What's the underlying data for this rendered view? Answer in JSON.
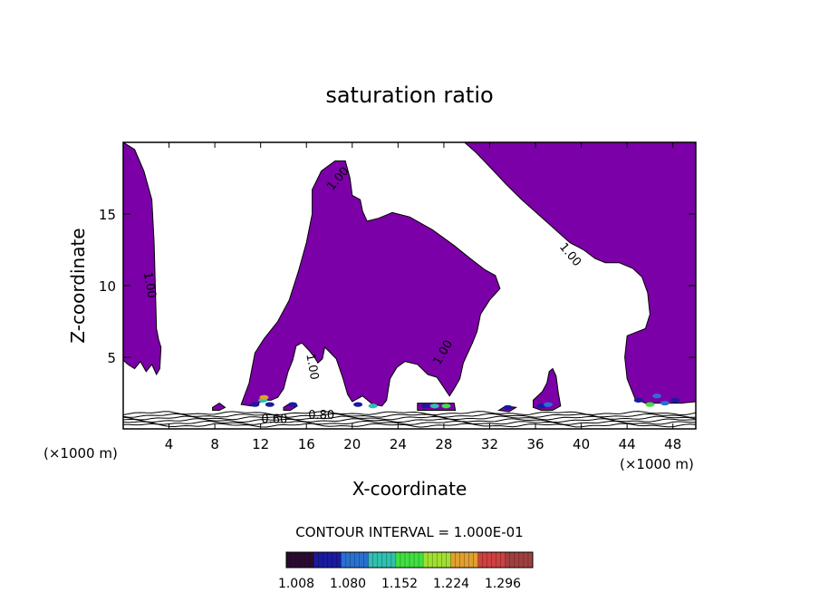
{
  "chart_data": {
    "type": "heatmap",
    "title": "saturation ratio",
    "xlabel": "X-coordinate",
    "ylabel": "Z-coordinate",
    "x_unit_left": "(×1000 m)",
    "x_unit_right": "(×1000 m)",
    "xlim": [
      0,
      50
    ],
    "ylim": [
      0,
      20
    ],
    "x_ticks": [
      4,
      8,
      12,
      16,
      20,
      24,
      28,
      32,
      36,
      40,
      44,
      48
    ],
    "y_ticks": [
      5,
      10,
      15
    ],
    "contour_interval_text": "CONTOUR INTERVAL = 1.000E-01",
    "contour_labels": [
      {
        "text": "1.00",
        "x": 19.0,
        "z": 17.3,
        "angle": -50
      },
      {
        "text": "1.00",
        "x": 2.0,
        "z": 10.0,
        "angle": 80
      },
      {
        "text": "1.00",
        "x": 16.2,
        "z": 4.3,
        "angle": 80
      },
      {
        "text": "1.00",
        "x": 28.2,
        "z": 5.2,
        "angle": -60
      },
      {
        "text": "1.00",
        "x": 38.8,
        "z": 12.0,
        "angle": 50
      },
      {
        "text": "0.60",
        "x": 13.2,
        "z": 0.4,
        "angle": 0
      },
      {
        "text": "0.80",
        "x": 17.3,
        "z": 0.7,
        "angle": 0
      }
    ],
    "colorbar": {
      "ticks": [
        "1.008",
        "1.080",
        "1.152",
        "1.224",
        "1.296"
      ],
      "range": [
        1.0,
        1.33
      ],
      "colors": [
        "#2a0a30",
        "#1a1aa0",
        "#2a70d0",
        "#30c0b0",
        "#40e040",
        "#a0e030",
        "#e0a030",
        "#d04040",
        "#a04040"
      ]
    },
    "supersaturated_fill_color": "#7b00a8",
    "regions": [
      {
        "name": "left-column",
        "points": [
          [
            0,
            20
          ],
          [
            1,
            19.5
          ],
          [
            1.8,
            18
          ],
          [
            2.5,
            16
          ],
          [
            2.7,
            13
          ],
          [
            2.8,
            10
          ],
          [
            2.9,
            7
          ],
          [
            3.1,
            6.2
          ],
          [
            3.3,
            5.7
          ],
          [
            3.2,
            4.2
          ],
          [
            2.9,
            3.8
          ],
          [
            2.5,
            4.5
          ],
          [
            2.0,
            4.0
          ],
          [
            1.5,
            4.7
          ],
          [
            1.0,
            4.2
          ],
          [
            0.4,
            4.5
          ],
          [
            0,
            4.8
          ]
        ]
      },
      {
        "name": "central-cloud",
        "points": [
          [
            10.3,
            1.7
          ],
          [
            11.0,
            3.2
          ],
          [
            11.5,
            5.3
          ],
          [
            12.3,
            6.3
          ],
          [
            13.5,
            7.5
          ],
          [
            14.5,
            9.0
          ],
          [
            15.3,
            11.0
          ],
          [
            16.0,
            13.0
          ],
          [
            16.5,
            15.0
          ],
          [
            16.5,
            16.7
          ],
          [
            17.3,
            18.0
          ],
          [
            18.5,
            18.7
          ],
          [
            19.4,
            18.7
          ],
          [
            19.8,
            17.5
          ],
          [
            20.0,
            16.3
          ],
          [
            20.7,
            16.0
          ],
          [
            20.9,
            15.2
          ],
          [
            21.3,
            14.5
          ],
          [
            22.3,
            14.7
          ],
          [
            23.5,
            15.1
          ],
          [
            25.0,
            14.8
          ],
          [
            27.0,
            13.9
          ],
          [
            28.9,
            12.8
          ],
          [
            30.3,
            11.9
          ],
          [
            31.6,
            11.1
          ],
          [
            32.5,
            10.7
          ],
          [
            32.9,
            9.8
          ],
          [
            32.0,
            9.0
          ],
          [
            31.2,
            8.0
          ],
          [
            30.9,
            6.8
          ],
          [
            30.5,
            6.0
          ],
          [
            29.7,
            4.6
          ],
          [
            29.4,
            3.5
          ],
          [
            28.9,
            2.8
          ],
          [
            28.5,
            2.3
          ],
          [
            27.4,
            3.6
          ],
          [
            26.6,
            3.8
          ],
          [
            25.7,
            4.5
          ],
          [
            24.6,
            4.7
          ],
          [
            23.9,
            4.3
          ],
          [
            23.3,
            3.5
          ],
          [
            23.0,
            2.0
          ],
          [
            22.6,
            1.6
          ],
          [
            21.8,
            1.7
          ],
          [
            20.9,
            2.3
          ],
          [
            20.0,
            1.9
          ],
          [
            19.6,
            2.4
          ],
          [
            19.2,
            3.5
          ],
          [
            18.6,
            4.9
          ],
          [
            17.6,
            5.7
          ],
          [
            17.4,
            4.9
          ],
          [
            17.0,
            4.6
          ],
          [
            16.7,
            5.0
          ],
          [
            16.2,
            5.5
          ],
          [
            15.6,
            6.0
          ],
          [
            15.1,
            5.8
          ],
          [
            14.8,
            4.8
          ],
          [
            14.4,
            4.0
          ],
          [
            14.0,
            2.8
          ],
          [
            13.5,
            2.2
          ],
          [
            12.9,
            2.0
          ],
          [
            12.3,
            2.0
          ],
          [
            11.8,
            1.8
          ],
          [
            11.2,
            1.6
          ]
        ]
      },
      {
        "name": "right-anvil",
        "points": [
          [
            29.8,
            20
          ],
          [
            50,
            20
          ],
          [
            50,
            1.9
          ],
          [
            48.7,
            1.8
          ],
          [
            47.2,
            1.8
          ],
          [
            45.6,
            1.8
          ],
          [
            44.7,
            2.1
          ],
          [
            44.0,
            3.5
          ],
          [
            43.8,
            5.0
          ],
          [
            44.0,
            6.5
          ],
          [
            45.6,
            7.0
          ],
          [
            46.0,
            8.0
          ],
          [
            45.8,
            9.5
          ],
          [
            45.3,
            10.6
          ],
          [
            44.5,
            11.2
          ],
          [
            43.3,
            11.6
          ],
          [
            42.1,
            11.6
          ],
          [
            41.2,
            11.9
          ],
          [
            40.2,
            12.5
          ],
          [
            39.0,
            13.0
          ],
          [
            37.6,
            14.0
          ],
          [
            36.2,
            15.0
          ],
          [
            34.8,
            16.0
          ],
          [
            33.4,
            17.1
          ],
          [
            32.0,
            18.3
          ],
          [
            30.8,
            19.3
          ]
        ]
      },
      {
        "name": "cell-36",
        "points": [
          [
            35.8,
            2.0
          ],
          [
            36.6,
            2.6
          ],
          [
            37.0,
            3.2
          ],
          [
            37.2,
            4.0
          ],
          [
            37.5,
            4.2
          ],
          [
            37.8,
            3.7
          ],
          [
            38.0,
            2.5
          ],
          [
            38.2,
            1.6
          ],
          [
            37.5,
            1.3
          ],
          [
            36.5,
            1.3
          ],
          [
            35.8,
            1.5
          ]
        ]
      },
      {
        "name": "base-blob-1",
        "points": [
          [
            7.8,
            1.5
          ],
          [
            8.4,
            1.8
          ],
          [
            8.9,
            1.5
          ],
          [
            8.4,
            1.3
          ],
          [
            7.8,
            1.3
          ]
        ]
      },
      {
        "name": "base-blob-2",
        "points": [
          [
            14.0,
            1.5
          ],
          [
            14.6,
            1.8
          ],
          [
            15.2,
            1.6
          ],
          [
            14.6,
            1.3
          ],
          [
            14.0,
            1.3
          ]
        ]
      },
      {
        "name": "base-blob-3",
        "points": [
          [
            25.7,
            1.3
          ],
          [
            25.7,
            1.8
          ],
          [
            28.9,
            1.8
          ],
          [
            29.0,
            1.3
          ]
        ]
      },
      {
        "name": "base-blob-4",
        "points": [
          [
            32.8,
            1.3
          ],
          [
            33.4,
            1.6
          ],
          [
            34.3,
            1.5
          ],
          [
            33.7,
            1.2
          ]
        ]
      }
    ],
    "high_spots": [
      {
        "x": 11.5,
        "z": 1.7,
        "v": 1.06
      },
      {
        "x": 12.2,
        "z": 2.0,
        "v": 1.12
      },
      {
        "x": 12.3,
        "z": 2.2,
        "v": 1.24
      },
      {
        "x": 12.8,
        "z": 1.7,
        "v": 1.05
      },
      {
        "x": 14.8,
        "z": 1.7,
        "v": 1.05
      },
      {
        "x": 20.5,
        "z": 1.7,
        "v": 1.06
      },
      {
        "x": 21.8,
        "z": 1.6,
        "v": 1.12
      },
      {
        "x": 26.4,
        "z": 1.6,
        "v": 1.06
      },
      {
        "x": 27.2,
        "z": 1.6,
        "v": 1.12
      },
      {
        "x": 28.2,
        "z": 1.6,
        "v": 1.16
      },
      {
        "x": 33.6,
        "z": 1.5,
        "v": 1.05
      },
      {
        "x": 36.5,
        "z": 1.6,
        "v": 1.05
      },
      {
        "x": 37.1,
        "z": 1.7,
        "v": 1.1
      },
      {
        "x": 45.0,
        "z": 2.0,
        "v": 1.06
      },
      {
        "x": 46.0,
        "z": 1.7,
        "v": 1.18
      },
      {
        "x": 46.6,
        "z": 2.3,
        "v": 1.09
      },
      {
        "x": 47.3,
        "z": 1.8,
        "v": 1.1
      },
      {
        "x": 48.2,
        "z": 2.0,
        "v": 1.05
      }
    ],
    "subsaturated_contour_levels": [
      0.4,
      0.5,
      0.6,
      0.7,
      0.8,
      0.9
    ]
  }
}
